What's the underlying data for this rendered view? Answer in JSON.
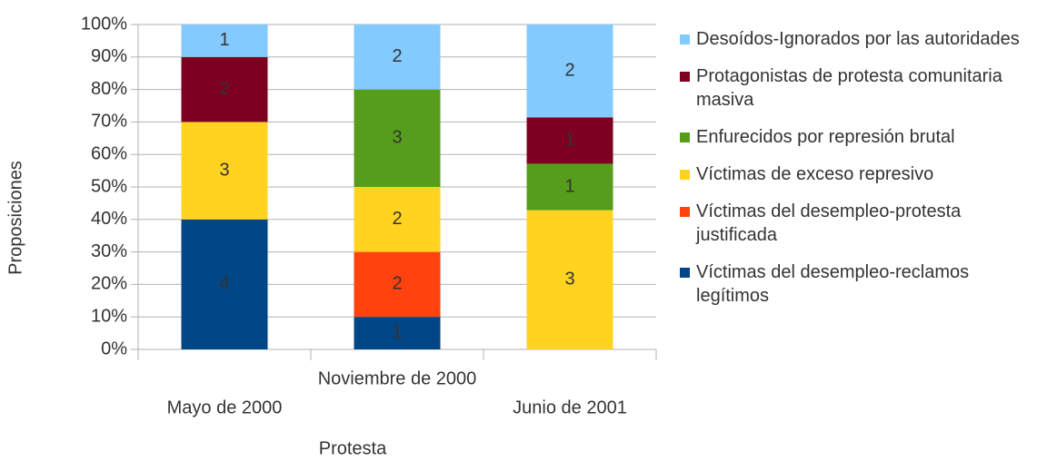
{
  "chart_data": {
    "type": "bar",
    "stacking": "percent",
    "xlabel": "Protesta",
    "ylabel": "Proposiciones",
    "categories": [
      "Mayo  de 2000",
      "Noviembre de 2000",
      "Junio de 2001"
    ],
    "series": [
      {
        "name": "Víctimas del desempleo-reclamos legítimos",
        "color": "#004586",
        "values": [
          4,
          1,
          0
        ]
      },
      {
        "name": "Víctimas del desempleo-protesta justificada",
        "color": "#ff420e",
        "values": [
          0,
          2,
          0
        ]
      },
      {
        "name": "Víctimas de exceso represivo",
        "color": "#ffd320",
        "values": [
          3,
          2,
          3
        ]
      },
      {
        "name": "Enfurecidos por represión brutal",
        "color": "#579d1c",
        "values": [
          0,
          3,
          1
        ]
      },
      {
        "name": "Protagonistas de protesta comunitaria masiva",
        "color": "#7e0021",
        "values": [
          2,
          0,
          1
        ]
      },
      {
        "name": "Desoídos-Ignorados por las autoridades",
        "color": "#83caff",
        "values": [
          1,
          2,
          2
        ]
      }
    ],
    "ylim": [
      0,
      100
    ],
    "yticks": [
      {
        "value": 0,
        "label": "0%"
      },
      {
        "value": 10,
        "label": "10%"
      },
      {
        "value": 20,
        "label": "20%"
      },
      {
        "value": 30,
        "label": "30%"
      },
      {
        "value": 40,
        "label": "40%"
      },
      {
        "value": 50,
        "label": "50%"
      },
      {
        "value": 60,
        "label": "60%"
      },
      {
        "value": 70,
        "label": "70%"
      },
      {
        "value": 80,
        "label": "80%"
      },
      {
        "value": 90,
        "label": "90%"
      },
      {
        "value": 100,
        "label": "100%"
      }
    ],
    "grid": true,
    "legend": "right"
  }
}
